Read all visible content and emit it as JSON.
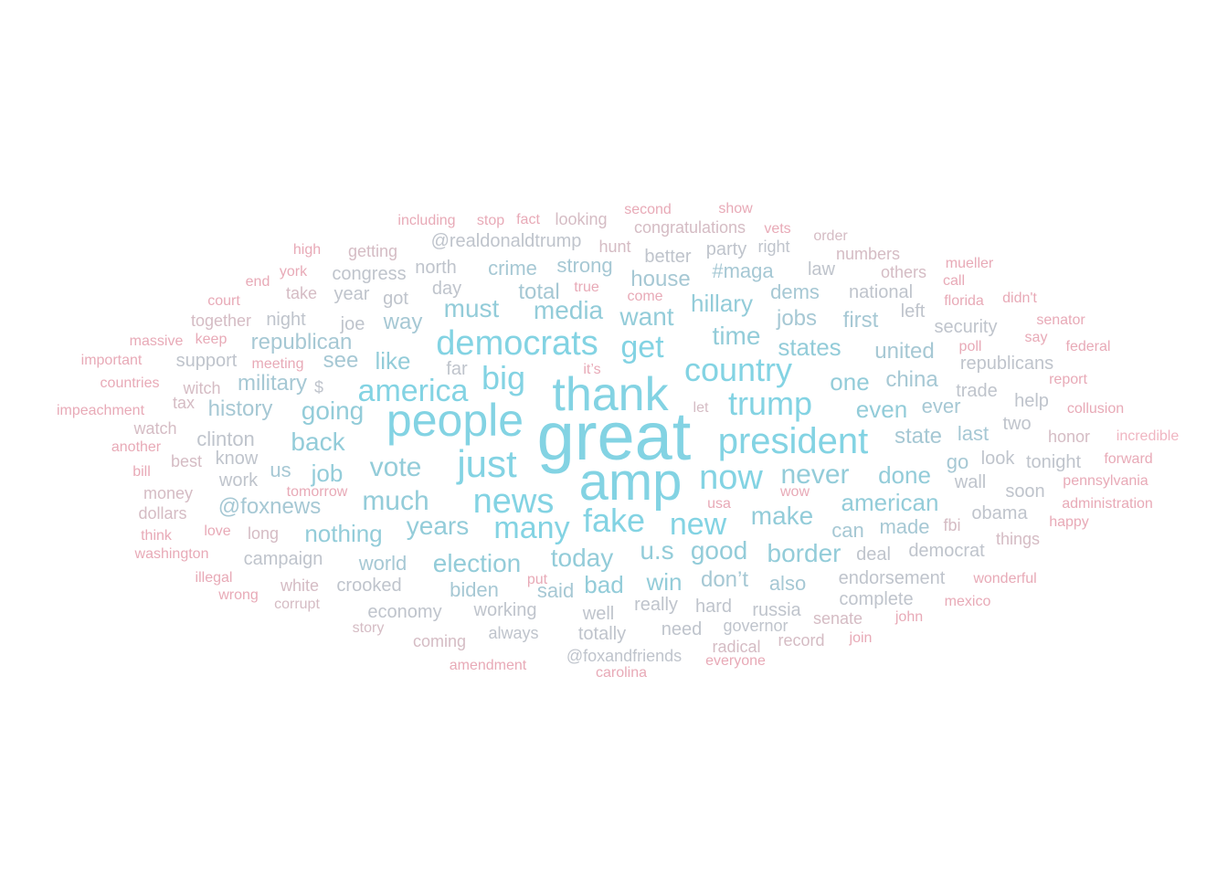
{
  "palette": {
    "tier1": "#83d3e3",
    "tier2": "#93ccd9",
    "tier3": "#a6c8d4",
    "tier4": "#bfc4cc",
    "tier5": "#d5bcc4",
    "tier6": "#e8aab7",
    "tier7": "#f0b6c2"
  },
  "words": [
    {
      "text": "great",
      "tier": 1
    },
    {
      "text": "amp",
      "tier": 1
    },
    {
      "text": "thank",
      "tier": 1
    },
    {
      "text": "people",
      "tier": 1
    },
    {
      "text": "just",
      "tier": 1
    },
    {
      "text": "president",
      "tier": 1
    },
    {
      "text": "news",
      "tier": 1
    },
    {
      "text": "now",
      "tier": 1
    },
    {
      "text": "democrats",
      "tier": 1
    },
    {
      "text": "trump",
      "tier": 1
    },
    {
      "text": "country",
      "tier": 1
    },
    {
      "text": "big",
      "tier": 1
    },
    {
      "text": "fake",
      "tier": 1
    },
    {
      "text": "new",
      "tier": 1
    },
    {
      "text": "many",
      "tier": 1
    },
    {
      "text": "get",
      "tier": 1
    },
    {
      "text": "america",
      "tier": 1
    },
    {
      "text": "never",
      "tier": 2
    },
    {
      "text": "vote",
      "tier": 2
    },
    {
      "text": "much",
      "tier": 2
    },
    {
      "text": "make",
      "tier": 2
    },
    {
      "text": "back",
      "tier": 2
    },
    {
      "text": "going",
      "tier": 2
    },
    {
      "text": "want",
      "tier": 2
    },
    {
      "text": "time",
      "tier": 2
    },
    {
      "text": "media",
      "tier": 2
    },
    {
      "text": "must",
      "tier": 2
    },
    {
      "text": "years",
      "tier": 2
    },
    {
      "text": "today",
      "tier": 2
    },
    {
      "text": "election",
      "tier": 2
    },
    {
      "text": "good",
      "tier": 2
    },
    {
      "text": "u.s",
      "tier": 2
    },
    {
      "text": "border",
      "tier": 2
    },
    {
      "text": "hillary",
      "tier": 2
    },
    {
      "text": "states",
      "tier": 2
    },
    {
      "text": "one",
      "tier": 2
    },
    {
      "text": "even",
      "tier": 2
    },
    {
      "text": "american",
      "tier": 2
    },
    {
      "text": "done",
      "tier": 2
    },
    {
      "text": "nothing",
      "tier": 2
    },
    {
      "text": "job",
      "tier": 2
    },
    {
      "text": "like",
      "tier": 2
    },
    {
      "text": "win",
      "tier": 2
    },
    {
      "text": "bad",
      "tier": 2
    },
    {
      "text": "house",
      "tier": 3
    },
    {
      "text": "jobs",
      "tier": 3
    },
    {
      "text": "first",
      "tier": 3
    },
    {
      "text": "united",
      "tier": 3
    },
    {
      "text": "china",
      "tier": 3
    },
    {
      "text": "state",
      "tier": 3
    },
    {
      "text": "republican",
      "tier": 3
    },
    {
      "text": "military",
      "tier": 3
    },
    {
      "text": "way",
      "tier": 3
    },
    {
      "text": "see",
      "tier": 3
    },
    {
      "text": "history",
      "tier": 3
    },
    {
      "text": "@foxnews",
      "tier": 3
    },
    {
      "text": "total",
      "tier": 3
    },
    {
      "text": "strong",
      "tier": 3
    },
    {
      "text": "crime",
      "tier": 3
    },
    {
      "text": "dems",
      "tier": 3
    },
    {
      "text": "#maga",
      "tier": 3
    },
    {
      "text": "can",
      "tier": 3
    },
    {
      "text": "made",
      "tier": 3
    },
    {
      "text": "don’t",
      "tier": 3
    },
    {
      "text": "also",
      "tier": 3
    },
    {
      "text": "biden",
      "tier": 3
    },
    {
      "text": "said",
      "tier": 3
    },
    {
      "text": "world",
      "tier": 3
    },
    {
      "text": "us",
      "tier": 3
    },
    {
      "text": "go",
      "tier": 3
    },
    {
      "text": "ever",
      "tier": 3
    },
    {
      "text": "last",
      "tier": 3
    },
    {
      "text": "clinton",
      "tier": 4
    },
    {
      "text": "deal",
      "tier": 4
    },
    {
      "text": "democrat",
      "tier": 4
    },
    {
      "text": "endorsement",
      "tier": 4
    },
    {
      "text": "working",
      "tier": 4
    },
    {
      "text": "economy",
      "tier": 4
    },
    {
      "text": "crooked",
      "tier": 4
    },
    {
      "text": "campaign",
      "tier": 4
    },
    {
      "text": "really",
      "tier": 4
    },
    {
      "text": "hard",
      "tier": 4
    },
    {
      "text": "russia",
      "tier": 4
    },
    {
      "text": "complete",
      "tier": 4
    },
    {
      "text": "well",
      "tier": 4
    },
    {
      "text": "totally",
      "tier": 4
    },
    {
      "text": "always",
      "tier": 4
    },
    {
      "text": "need",
      "tier": 4
    },
    {
      "text": "governor",
      "tier": 4
    },
    {
      "text": "@foxandfriends",
      "tier": 4
    },
    {
      "text": "security",
      "tier": 4
    },
    {
      "text": "republicans",
      "tier": 4
    },
    {
      "text": "trade",
      "tier": 4
    },
    {
      "text": "help",
      "tier": 4
    },
    {
      "text": "two",
      "tier": 4
    },
    {
      "text": "look",
      "tier": 4
    },
    {
      "text": "tonight",
      "tier": 4
    },
    {
      "text": "wall",
      "tier": 4
    },
    {
      "text": "soon",
      "tier": 4
    },
    {
      "text": "obama",
      "tier": 4
    },
    {
      "text": "national",
      "tier": 4
    },
    {
      "text": "left",
      "tier": 4
    },
    {
      "text": "law",
      "tier": 4
    },
    {
      "text": "party",
      "tier": 4
    },
    {
      "text": "better",
      "tier": 4
    },
    {
      "text": "right",
      "tier": 4
    },
    {
      "text": "@realdonaldtrump",
      "tier": 4
    },
    {
      "text": "north",
      "tier": 4
    },
    {
      "text": "day",
      "tier": 4
    },
    {
      "text": "got",
      "tier": 4
    },
    {
      "text": "year",
      "tier": 4
    },
    {
      "text": "congress",
      "tier": 4
    },
    {
      "text": "joe",
      "tier": 4
    },
    {
      "text": "night",
      "tier": 4
    },
    {
      "text": "support",
      "tier": 4
    },
    {
      "text": "know",
      "tier": 4
    },
    {
      "text": "work",
      "tier": 4
    },
    {
      "text": "far",
      "tier": 4
    },
    {
      "text": "$",
      "tier": 4
    },
    {
      "text": "hunt",
      "tier": 5
    },
    {
      "text": "getting",
      "tier": 5
    },
    {
      "text": "together",
      "tier": 5
    },
    {
      "text": "take",
      "tier": 5
    },
    {
      "text": "witch",
      "tier": 5
    },
    {
      "text": "tax",
      "tier": 5
    },
    {
      "text": "watch",
      "tier": 5
    },
    {
      "text": "best",
      "tier": 5
    },
    {
      "text": "money",
      "tier": 5
    },
    {
      "text": "dollars",
      "tier": 5
    },
    {
      "text": "long",
      "tier": 5
    },
    {
      "text": "white",
      "tier": 5
    },
    {
      "text": "coming",
      "tier": 5
    },
    {
      "text": "story",
      "tier": 5
    },
    {
      "text": "corrupt",
      "tier": 5
    },
    {
      "text": "radical",
      "tier": 5
    },
    {
      "text": "record",
      "tier": 5
    },
    {
      "text": "senate",
      "tier": 5
    },
    {
      "text": "fbi",
      "tier": 5
    },
    {
      "text": "things",
      "tier": 5
    },
    {
      "text": "honor",
      "tier": 5
    },
    {
      "text": "others",
      "tier": 5
    },
    {
      "text": "numbers",
      "tier": 5
    },
    {
      "text": "congratulations",
      "tier": 5
    },
    {
      "text": "looking",
      "tier": 5
    },
    {
      "text": "order",
      "tier": 5
    },
    {
      "text": "let",
      "tier": 5
    },
    {
      "text": "it’s",
      "tier": 6
    },
    {
      "text": "including",
      "tier": 6
    },
    {
      "text": "stop",
      "tier": 6
    },
    {
      "text": "fact",
      "tier": 6
    },
    {
      "text": "second",
      "tier": 6
    },
    {
      "text": "show",
      "tier": 6
    },
    {
      "text": "vets",
      "tier": 6
    },
    {
      "text": "true",
      "tier": 6
    },
    {
      "text": "come",
      "tier": 6
    },
    {
      "text": "high",
      "tier": 6
    },
    {
      "text": "york",
      "tier": 6
    },
    {
      "text": "end",
      "tier": 6
    },
    {
      "text": "court",
      "tier": 6
    },
    {
      "text": "massive",
      "tier": 6
    },
    {
      "text": "keep",
      "tier": 6
    },
    {
      "text": "important",
      "tier": 6
    },
    {
      "text": "meeting",
      "tier": 6
    },
    {
      "text": "countries",
      "tier": 6
    },
    {
      "text": "impeachment",
      "tier": 6
    },
    {
      "text": "another",
      "tier": 6
    },
    {
      "text": "bill",
      "tier": 6
    },
    {
      "text": "tomorrow",
      "tier": 6
    },
    {
      "text": "love",
      "tier": 6
    },
    {
      "text": "think",
      "tier": 6
    },
    {
      "text": "washington",
      "tier": 6
    },
    {
      "text": "illegal",
      "tier": 6
    },
    {
      "text": "wrong",
      "tier": 6
    },
    {
      "text": "amendment",
      "tier": 6
    },
    {
      "text": "carolina",
      "tier": 6
    },
    {
      "text": "everyone",
      "tier": 6
    },
    {
      "text": "put",
      "tier": 6
    },
    {
      "text": "usa",
      "tier": 6
    },
    {
      "text": "wow",
      "tier": 6
    },
    {
      "text": "join",
      "tier": 6
    },
    {
      "text": "john",
      "tier": 6
    },
    {
      "text": "mexico",
      "tier": 6
    },
    {
      "text": "wonderful",
      "tier": 6
    },
    {
      "text": "happy",
      "tier": 6
    },
    {
      "text": "administration",
      "tier": 6
    },
    {
      "text": "pennsylvania",
      "tier": 6
    },
    {
      "text": "forward",
      "tier": 6
    },
    {
      "text": "incredible",
      "tier": 7
    },
    {
      "text": "collusion",
      "tier": 6
    },
    {
      "text": "report",
      "tier": 6
    },
    {
      "text": "federal",
      "tier": 6
    },
    {
      "text": "say",
      "tier": 6
    },
    {
      "text": "poll",
      "tier": 6
    },
    {
      "text": "senator",
      "tier": 6
    },
    {
      "text": "didn't",
      "tier": 6
    },
    {
      "text": "florida",
      "tier": 6
    },
    {
      "text": "call",
      "tier": 6
    },
    {
      "text": "mueller",
      "tier": 6
    }
  ]
}
